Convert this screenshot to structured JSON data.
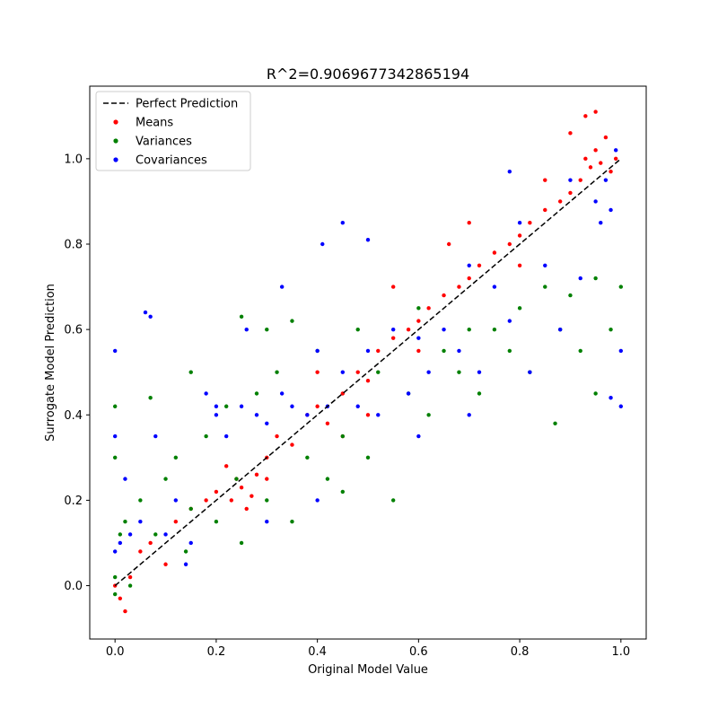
{
  "chart_data": {
    "type": "scatter",
    "title": "R^2=0.9069677342865194",
    "xlabel": "Original Model Value",
    "ylabel": "Surrogate Model Prediction",
    "xlim": [
      -0.05,
      1.05
    ],
    "ylim": [
      -0.125,
      1.17
    ],
    "x_ticks": [
      0.0,
      0.2,
      0.4,
      0.6,
      0.8,
      1.0
    ],
    "y_ticks": [
      0.0,
      0.2,
      0.4,
      0.6,
      0.8,
      1.0
    ],
    "x_tick_labels": [
      "0.0",
      "0.2",
      "0.4",
      "0.6",
      "0.8",
      "1.0"
    ],
    "y_tick_labels": [
      "0.0",
      "0.2",
      "0.4",
      "0.6",
      "0.8",
      "1.0"
    ],
    "grid": false,
    "legend_position": "top-left",
    "reference_line": {
      "name": "Perfect Prediction",
      "x": [
        0.0,
        1.0
      ],
      "y": [
        0.0,
        1.0
      ],
      "style": "dashed",
      "color": "#000000"
    },
    "series": [
      {
        "name": "Means",
        "color": "#ff0000",
        "points": [
          [
            0.0,
            0.0
          ],
          [
            0.01,
            -0.03
          ],
          [
            0.02,
            -0.06
          ],
          [
            0.03,
            0.02
          ],
          [
            0.05,
            0.08
          ],
          [
            0.07,
            0.1
          ],
          [
            0.1,
            0.05
          ],
          [
            0.12,
            0.15
          ],
          [
            0.15,
            0.18
          ],
          [
            0.18,
            0.2
          ],
          [
            0.2,
            0.22
          ],
          [
            0.22,
            0.28
          ],
          [
            0.23,
            0.2
          ],
          [
            0.24,
            0.25
          ],
          [
            0.25,
            0.23
          ],
          [
            0.26,
            0.18
          ],
          [
            0.27,
            0.21
          ],
          [
            0.28,
            0.26
          ],
          [
            0.3,
            0.3
          ],
          [
            0.32,
            0.35
          ],
          [
            0.35,
            0.33
          ],
          [
            0.38,
            0.4
          ],
          [
            0.4,
            0.42
          ],
          [
            0.42,
            0.38
          ],
          [
            0.45,
            0.45
          ],
          [
            0.48,
            0.5
          ],
          [
            0.5,
            0.48
          ],
          [
            0.52,
            0.55
          ],
          [
            0.55,
            0.58
          ],
          [
            0.58,
            0.6
          ],
          [
            0.6,
            0.62
          ],
          [
            0.62,
            0.65
          ],
          [
            0.65,
            0.68
          ],
          [
            0.68,
            0.7
          ],
          [
            0.7,
            0.72
          ],
          [
            0.72,
            0.75
          ],
          [
            0.75,
            0.78
          ],
          [
            0.78,
            0.8
          ],
          [
            0.8,
            0.82
          ],
          [
            0.82,
            0.85
          ],
          [
            0.85,
            0.88
          ],
          [
            0.88,
            0.9
          ],
          [
            0.9,
            0.92
          ],
          [
            0.92,
            0.95
          ],
          [
            0.93,
            1.0
          ],
          [
            0.94,
            0.98
          ],
          [
            0.95,
            1.02
          ],
          [
            0.96,
            0.99
          ],
          [
            0.97,
            1.05
          ],
          [
            0.98,
            0.97
          ],
          [
            0.99,
            1.0
          ],
          [
            0.95,
            1.11
          ],
          [
            0.93,
            1.1
          ],
          [
            0.9,
            1.06
          ],
          [
            0.85,
            0.95
          ],
          [
            0.8,
            0.75
          ],
          [
            0.6,
            0.55
          ],
          [
            0.5,
            0.4
          ],
          [
            0.4,
            0.5
          ],
          [
            0.3,
            0.25
          ],
          [
            0.66,
            0.8
          ],
          [
            0.7,
            0.85
          ],
          [
            0.55,
            0.7
          ],
          [
            0.45,
            0.35
          ]
        ]
      },
      {
        "name": "Variances",
        "color": "#008000",
        "points": [
          [
            0.0,
            0.02
          ],
          [
            0.0,
            -0.02
          ],
          [
            0.0,
            0.3
          ],
          [
            0.0,
            0.42
          ],
          [
            0.01,
            0.12
          ],
          [
            0.02,
            0.15
          ],
          [
            0.03,
            0.0
          ],
          [
            0.05,
            0.2
          ],
          [
            0.08,
            0.12
          ],
          [
            0.1,
            0.25
          ],
          [
            0.12,
            0.3
          ],
          [
            0.14,
            0.08
          ],
          [
            0.15,
            0.18
          ],
          [
            0.18,
            0.35
          ],
          [
            0.2,
            0.15
          ],
          [
            0.22,
            0.42
          ],
          [
            0.24,
            0.25
          ],
          [
            0.25,
            0.1
          ],
          [
            0.28,
            0.45
          ],
          [
            0.3,
            0.2
          ],
          [
            0.32,
            0.5
          ],
          [
            0.35,
            0.15
          ],
          [
            0.38,
            0.3
          ],
          [
            0.4,
            0.55
          ],
          [
            0.42,
            0.25
          ],
          [
            0.45,
            0.35
          ],
          [
            0.48,
            0.6
          ],
          [
            0.5,
            0.3
          ],
          [
            0.52,
            0.5
          ],
          [
            0.55,
            0.2
          ],
          [
            0.58,
            0.45
          ],
          [
            0.6,
            0.65
          ],
          [
            0.62,
            0.4
          ],
          [
            0.65,
            0.55
          ],
          [
            0.68,
            0.5
          ],
          [
            0.7,
            0.6
          ],
          [
            0.72,
            0.45
          ],
          [
            0.75,
            0.6
          ],
          [
            0.78,
            0.55
          ],
          [
            0.8,
            0.65
          ],
          [
            0.82,
            0.5
          ],
          [
            0.85,
            0.7
          ],
          [
            0.88,
            0.6
          ],
          [
            0.9,
            0.68
          ],
          [
            0.92,
            0.55
          ],
          [
            0.95,
            0.72
          ],
          [
            0.98,
            0.6
          ],
          [
            1.0,
            0.7
          ],
          [
            0.87,
            0.38
          ],
          [
            0.95,
            0.45
          ],
          [
            0.25,
            0.63
          ],
          [
            0.3,
            0.6
          ],
          [
            0.15,
            0.5
          ],
          [
            0.07,
            0.44
          ],
          [
            0.35,
            0.62
          ],
          [
            0.45,
            0.22
          ]
        ]
      },
      {
        "name": "Covariances",
        "color": "#0000ff",
        "points": [
          [
            0.0,
            0.55
          ],
          [
            0.0,
            0.08
          ],
          [
            0.0,
            0.35
          ],
          [
            0.01,
            0.1
          ],
          [
            0.02,
            0.25
          ],
          [
            0.03,
            0.12
          ],
          [
            0.05,
            0.15
          ],
          [
            0.06,
            0.64
          ],
          [
            0.07,
            0.63
          ],
          [
            0.1,
            0.12
          ],
          [
            0.12,
            0.2
          ],
          [
            0.15,
            0.1
          ],
          [
            0.18,
            0.45
          ],
          [
            0.2,
            0.4
          ],
          [
            0.22,
            0.35
          ],
          [
            0.25,
            0.42
          ],
          [
            0.28,
            0.4
          ],
          [
            0.3,
            0.38
          ],
          [
            0.33,
            0.45
          ],
          [
            0.35,
            0.42
          ],
          [
            0.38,
            0.4
          ],
          [
            0.4,
            0.55
          ],
          [
            0.42,
            0.42
          ],
          [
            0.45,
            0.5
          ],
          [
            0.48,
            0.42
          ],
          [
            0.5,
            0.55
          ],
          [
            0.52,
            0.4
          ],
          [
            0.55,
            0.6
          ],
          [
            0.58,
            0.45
          ],
          [
            0.6,
            0.58
          ],
          [
            0.62,
            0.5
          ],
          [
            0.65,
            0.6
          ],
          [
            0.68,
            0.55
          ],
          [
            0.7,
            0.75
          ],
          [
            0.72,
            0.5
          ],
          [
            0.75,
            0.7
          ],
          [
            0.78,
            0.62
          ],
          [
            0.8,
            0.85
          ],
          [
            0.82,
            0.5
          ],
          [
            0.85,
            0.75
          ],
          [
            0.88,
            0.6
          ],
          [
            0.9,
            0.95
          ],
          [
            0.92,
            0.72
          ],
          [
            0.95,
            0.9
          ],
          [
            0.96,
            0.85
          ],
          [
            0.97,
            0.95
          ],
          [
            0.98,
            0.88
          ],
          [
            0.99,
            1.02
          ],
          [
            1.0,
            0.42
          ],
          [
            1.0,
            0.55
          ],
          [
            0.98,
            0.44
          ],
          [
            0.78,
            0.97
          ],
          [
            0.41,
            0.8
          ],
          [
            0.5,
            0.81
          ],
          [
            0.2,
            0.42
          ],
          [
            0.08,
            0.35
          ],
          [
            0.14,
            0.05
          ],
          [
            0.26,
            0.6
          ],
          [
            0.33,
            0.7
          ],
          [
            0.45,
            0.85
          ],
          [
            0.6,
            0.35
          ],
          [
            0.7,
            0.4
          ],
          [
            0.4,
            0.2
          ],
          [
            0.3,
            0.15
          ]
        ]
      }
    ]
  }
}
